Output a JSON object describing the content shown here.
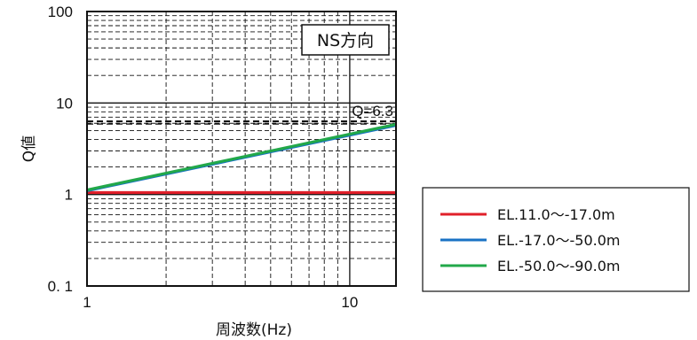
{
  "chart_data": {
    "type": "line",
    "title": "",
    "xlabel": "周波数(Hz)",
    "ylabel": "Q値",
    "x_scale": "log",
    "y_scale": "log",
    "xlim": [
      1,
      15
    ],
    "ylim": [
      0.1,
      100
    ],
    "x_tick_labels": [
      "1",
      "10"
    ],
    "y_tick_labels": [
      "0. 1",
      "1",
      "10",
      "100"
    ],
    "grid": true,
    "panel_label": "NS方向",
    "annotation": {
      "text": "Q=6.3",
      "y": 6.3,
      "line_style": "dashed"
    },
    "legend_position": "right",
    "series": [
      {
        "name": "EL.11.0～-17.0m",
        "color": "#e0202a",
        "x": [
          1,
          15
        ],
        "y": [
          1.05,
          1.05
        ]
      },
      {
        "name": "EL.-17.0～-50.0m",
        "color": "#1a72c4",
        "x": [
          1,
          15
        ],
        "y": [
          1.1,
          5.7
        ]
      },
      {
        "name": "EL.-50.0～-90.0m",
        "color": "#22a84a",
        "x": [
          1,
          15
        ],
        "y": [
          1.12,
          5.85
        ]
      }
    ]
  }
}
